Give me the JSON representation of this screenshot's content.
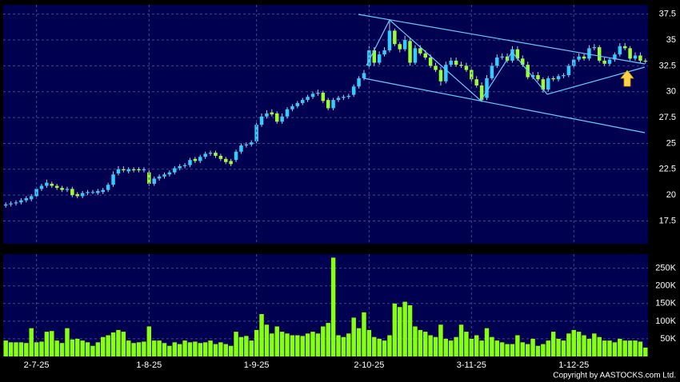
{
  "chart_data": [
    {
      "type": "candlestick",
      "up_color": "#33ccff",
      "down_color": "#99ff33",
      "wick_color": "#c8c8d8",
      "grid": true,
      "ylim": [
        15.3,
        38.4
      ],
      "yticks": [
        17.5,
        20,
        22.5,
        25,
        27.5,
        30,
        32.5,
        35,
        37.5
      ],
      "open": [
        19.0,
        19.1,
        19.2,
        19.3,
        19.5,
        19.6,
        19.9,
        20.6,
        20.9,
        21.1,
        20.9,
        20.7,
        20.5,
        20.6,
        20.1,
        19.9,
        20.2,
        20.3,
        20.2,
        20.3,
        20.5,
        21.0,
        22.1,
        22.5,
        22.3,
        22.5,
        22.5,
        22.4,
        22.2,
        21.1,
        21.6,
        21.8,
        22.0,
        22.2,
        22.6,
        22.8,
        22.9,
        23.5,
        23.3,
        23.7,
        24.0,
        24.1,
        23.8,
        23.5,
        23.3,
        23.4,
        24.2,
        24.8,
        24.9,
        25.2,
        26.8,
        27.6,
        28.0,
        27.9,
        27.1,
        27.6,
        28.3,
        28.6,
        28.9,
        29.2,
        29.5,
        29.8,
        29.9,
        29.2,
        28.4,
        29.2,
        29.4,
        29.5,
        29.7,
        30.5,
        31.3,
        32.5,
        34.0,
        32.8,
        33.6,
        34.0,
        35.9,
        34.6,
        34.1,
        34.9,
        32.8,
        34.2,
        33.7,
        33.3,
        32.5,
        32.1,
        31.0,
        32.6,
        33.0,
        32.6,
        32.5,
        32.1,
        31.2,
        30.6,
        29.4,
        31.3,
        32.5,
        33.3,
        33.4,
        33.0,
        34.1,
        33.2,
        32.6,
        31.4,
        31.6,
        31.2,
        30.2,
        31.3,
        31.2,
        31.5,
        31.6,
        32.5,
        33.1,
        33.4,
        33.2,
        34.2,
        34.3,
        33.0,
        32.7,
        33.1,
        33.6,
        34.4,
        34.2,
        33.2,
        33.5,
        33.0
      ],
      "high": [
        19.3,
        19.4,
        19.5,
        19.7,
        19.9,
        20.1,
        20.8,
        21.1,
        21.5,
        21.3,
        21.1,
        20.9,
        20.8,
        20.8,
        20.3,
        20.4,
        20.5,
        20.5,
        20.6,
        20.7,
        21.2,
        22.3,
        22.8,
        22.8,
        22.7,
        22.7,
        22.7,
        22.7,
        22.4,
        21.8,
        22.0,
        22.2,
        22.4,
        22.8,
        23.0,
        23.1,
        23.6,
        23.7,
        23.9,
        24.2,
        24.3,
        24.3,
        24.0,
        23.7,
        23.5,
        24.4,
        25.0,
        25.1,
        25.3,
        27.0,
        27.9,
        28.2,
        28.3,
        28.1,
        27.9,
        28.5,
        28.8,
        29.1,
        29.4,
        29.7,
        30.0,
        30.2,
        30.1,
        29.4,
        29.4,
        29.6,
        29.7,
        29.8,
        30.7,
        31.5,
        32.1,
        34.4,
        34.3,
        33.9,
        34.3,
        36.8,
        36.1,
        34.8,
        35.4,
        35.2,
        34.5,
        34.5,
        34.0,
        33.6,
        32.8,
        32.4,
        32.9,
        33.3,
        33.3,
        32.9,
        32.8,
        32.4,
        31.5,
        30.9,
        31.6,
        32.8,
        33.6,
        33.7,
        33.7,
        34.4,
        34.4,
        33.5,
        32.9,
        31.9,
        31.9,
        31.4,
        31.5,
        31.5,
        31.7,
        31.8,
        32.7,
        33.4,
        33.7,
        33.7,
        34.5,
        34.6,
        34.5,
        33.3,
        33.3,
        33.8,
        34.7,
        34.7,
        34.4,
        33.8,
        33.8,
        33.2
      ],
      "low": [
        18.8,
        18.9,
        19.0,
        19.1,
        19.3,
        19.4,
        19.7,
        20.4,
        20.7,
        20.7,
        20.5,
        20.3,
        20.3,
        19.8,
        19.7,
        19.7,
        20.0,
        20.1,
        20.0,
        20.1,
        20.3,
        20.8,
        21.9,
        22.2,
        22.1,
        22.2,
        22.2,
        22.2,
        20.9,
        20.9,
        21.4,
        21.6,
        21.8,
        22.0,
        22.4,
        22.6,
        22.7,
        23.1,
        23.1,
        23.5,
        23.8,
        23.6,
        23.3,
        23.0,
        22.8,
        23.2,
        24.0,
        24.6,
        24.7,
        25.0,
        26.6,
        27.4,
        27.6,
        26.9,
        26.9,
        27.4,
        28.1,
        28.4,
        28.7,
        29.0,
        29.3,
        29.6,
        28.9,
        28.2,
        28.2,
        29.0,
        29.2,
        29.3,
        29.5,
        30.3,
        31.1,
        32.2,
        32.5,
        32.6,
        33.4,
        33.8,
        34.4,
        33.8,
        33.9,
        32.5,
        32.6,
        33.5,
        33.1,
        32.3,
        31.9,
        30.6,
        30.8,
        32.4,
        32.4,
        32.3,
        31.9,
        31.0,
        30.4,
        29.0,
        29.2,
        31.1,
        32.3,
        33.1,
        32.8,
        32.8,
        33.0,
        32.4,
        31.2,
        31.2,
        31.0,
        29.9,
        30.0,
        31.0,
        31.0,
        31.3,
        31.4,
        32.3,
        32.9,
        33.0,
        33.0,
        34.0,
        32.8,
        32.5,
        32.5,
        32.9,
        33.4,
        34.0,
        33.0,
        33.0,
        32.8,
        32.7
      ],
      "close": [
        19.1,
        19.2,
        19.3,
        19.5,
        19.7,
        19.9,
        20.6,
        20.9,
        21.2,
        20.9,
        20.7,
        20.5,
        20.6,
        20.0,
        19.9,
        20.2,
        20.3,
        20.3,
        20.4,
        20.5,
        21.0,
        22.0,
        22.5,
        22.4,
        22.5,
        22.4,
        22.4,
        22.5,
        21.1,
        21.6,
        21.8,
        22.0,
        22.2,
        22.6,
        22.8,
        22.9,
        23.4,
        23.3,
        23.7,
        24.0,
        24.1,
        23.8,
        23.5,
        23.2,
        23.0,
        24.2,
        24.8,
        24.9,
        25.1,
        26.8,
        27.6,
        27.9,
        27.8,
        27.1,
        27.6,
        28.3,
        28.6,
        28.9,
        29.2,
        29.5,
        29.8,
        29.9,
        29.1,
        28.4,
        29.2,
        29.4,
        29.5,
        29.6,
        30.5,
        31.3,
        31.8,
        34.0,
        32.8,
        33.6,
        34.0,
        35.9,
        34.6,
        34.1,
        35.0,
        32.8,
        34.2,
        33.7,
        33.3,
        32.5,
        32.1,
        31.0,
        32.6,
        33.0,
        32.6,
        32.5,
        32.1,
        31.2,
        30.6,
        29.2,
        31.3,
        32.5,
        33.3,
        33.4,
        33.0,
        34.1,
        33.2,
        32.6,
        31.4,
        31.6,
        31.2,
        30.2,
        31.3,
        31.2,
        31.5,
        31.6,
        32.5,
        33.1,
        33.4,
        33.2,
        34.2,
        34.3,
        33.0,
        32.7,
        33.1,
        33.6,
        34.4,
        34.2,
        33.2,
        33.5,
        33.0,
        32.9
      ]
    },
    {
      "type": "bar",
      "color": "#88ff11",
      "grid": true,
      "copyright": "Copyright by AASTOCKS.com Ltd.",
      "categories": [
        null,
        null,
        null,
        null,
        null,
        null,
        "2-7-25",
        null,
        null,
        null,
        null,
        null,
        null,
        null,
        null,
        null,
        null,
        null,
        null,
        null,
        null,
        null,
        null,
        null,
        null,
        null,
        null,
        null,
        "1-8-25",
        null,
        null,
        null,
        null,
        null,
        null,
        null,
        null,
        null,
        null,
        null,
        null,
        null,
        null,
        null,
        null,
        null,
        null,
        null,
        null,
        "1-9-25",
        null,
        null,
        null,
        null,
        null,
        null,
        null,
        null,
        null,
        null,
        null,
        null,
        null,
        null,
        null,
        null,
        null,
        null,
        null,
        null,
        null,
        "2-10-25",
        null,
        null,
        null,
        null,
        null,
        null,
        null,
        null,
        null,
        null,
        null,
        null,
        null,
        null,
        null,
        null,
        null,
        null,
        null,
        "3-11-25",
        null,
        null,
        null,
        null,
        null,
        null,
        null,
        null,
        null,
        null,
        null,
        null,
        null,
        null,
        null,
        null,
        null,
        null,
        null,
        "1-12-25",
        null,
        null,
        null,
        null,
        null,
        null,
        null,
        null,
        null,
        null,
        null,
        null,
        null,
        null
      ],
      "ylim": [
        0,
        290000
      ],
      "yticks": [
        {
          "value": 50000,
          "label": "50K"
        },
        {
          "value": 100000,
          "label": "100K"
        },
        {
          "value": 150000,
          "label": "150K"
        },
        {
          "value": 200000,
          "label": "200K"
        },
        {
          "value": 250000,
          "label": "250K"
        }
      ],
      "values": [
        45000,
        40000,
        40000,
        40000,
        38000,
        80000,
        40000,
        42000,
        70000,
        72000,
        45000,
        38000,
        80000,
        48000,
        50000,
        45000,
        40000,
        30000,
        40000,
        55000,
        60000,
        68000,
        75000,
        70000,
        45000,
        38000,
        40000,
        42000,
        85000,
        45000,
        45000,
        38000,
        30000,
        40000,
        35000,
        45000,
        40000,
        42000,
        38000,
        40000,
        45000,
        35000,
        40000,
        35000,
        30000,
        70000,
        55000,
        58000,
        45000,
        75000,
        120000,
        90000,
        65000,
        85000,
        70000,
        65000,
        60000,
        60000,
        58000,
        65000,
        70000,
        65000,
        85000,
        95000,
        280000,
        60000,
        55000,
        65000,
        110000,
        80000,
        125000,
        75000,
        55000,
        50000,
        45000,
        60000,
        150000,
        140000,
        155000,
        145000,
        85000,
        75000,
        70000,
        60000,
        55000,
        90000,
        50000,
        45000,
        55000,
        90000,
        70000,
        50000,
        60000,
        45000,
        80000,
        55000,
        45000,
        40000,
        35000,
        35000,
        60000,
        40000,
        35000,
        50000,
        30000,
        35000,
        45000,
        70000,
        50000,
        45000,
        65000,
        75000,
        70000,
        60000,
        50000,
        65000,
        55000,
        45000,
        45000,
        40000,
        50000,
        45000,
        45000,
        45000,
        42000,
        25000
      ]
    }
  ]
}
